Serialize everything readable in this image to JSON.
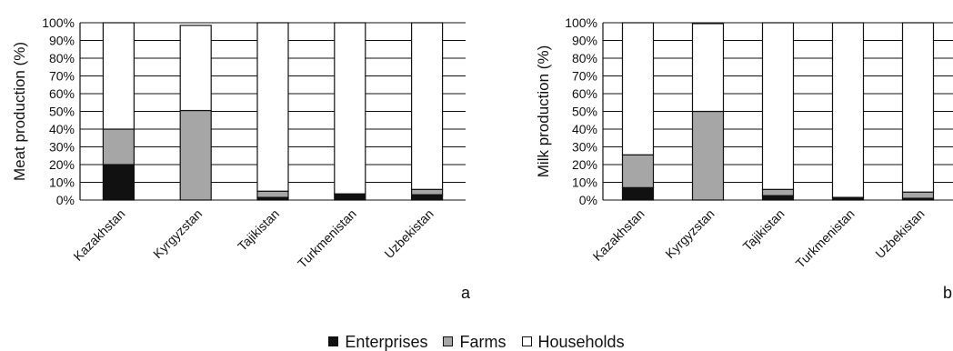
{
  "chart_data": [
    {
      "type": "bar",
      "stacked": true,
      "panel_label": "a",
      "ylabel": "Meat production (%)",
      "ylim": [
        0,
        100
      ],
      "y_ticks": [
        "0%",
        "10%",
        "20%",
        "30%",
        "40%",
        "50%",
        "60%",
        "70%",
        "80%",
        "90%",
        "100%"
      ],
      "grid": true,
      "categories": [
        "Kazakhstan",
        "Kyrgyzstan",
        "Tajikistan",
        "Turkmenistan",
        "Uzbekistan"
      ],
      "series": [
        {
          "name": "Enterprises",
          "values": [
            20,
            0,
            1.5,
            3.5,
            3
          ]
        },
        {
          "name": "Farms",
          "values": [
            20,
            50.5,
            3.5,
            0,
            3
          ]
        },
        {
          "name": "Households",
          "values": [
            60,
            48,
            95,
            96.5,
            94
          ]
        }
      ]
    },
    {
      "type": "bar",
      "stacked": true,
      "panel_label": "b",
      "ylabel": "Milk production (%)",
      "ylim": [
        0,
        100
      ],
      "y_ticks": [
        "0%",
        "10%",
        "20%",
        "30%",
        "40%",
        "50%",
        "60%",
        "70%",
        "80%",
        "90%",
        "100%"
      ],
      "grid": true,
      "categories": [
        "Kazakhstan",
        "Kyrgyzstan",
        "Tajikistan",
        "Turkmenistan",
        "Uzbekistan"
      ],
      "series": [
        {
          "name": "Enterprises",
          "values": [
            7,
            0,
            2.5,
            1.5,
            1
          ]
        },
        {
          "name": "Farms",
          "values": [
            18.5,
            50,
            3.5,
            0,
            3.5
          ]
        },
        {
          "name": "Households",
          "values": [
            74.5,
            49.5,
            94,
            98.5,
            95.5
          ]
        }
      ]
    }
  ],
  "legend": {
    "placement": "bottom-center",
    "items": [
      {
        "label": "Enterprises",
        "color": "#111111"
      },
      {
        "label": "Farms",
        "color": "#a6a6a6"
      },
      {
        "label": "Households",
        "color": "#ffffff"
      }
    ]
  },
  "colors": {
    "Enterprises": "#111111",
    "Farms": "#a6a6a6",
    "Households": "#ffffff"
  }
}
